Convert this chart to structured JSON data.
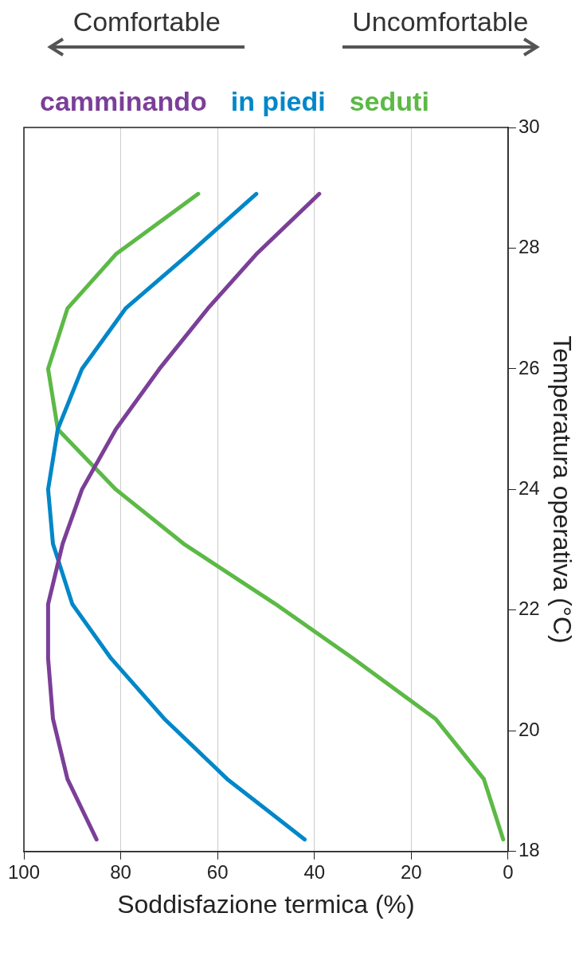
{
  "chart_data": {
    "type": "line",
    "xlabel": "Soddisfazione termica (%)",
    "ylabel": "Temperatura operativa (°C)",
    "annotations": [
      "Comfortable",
      "Uncomfortable"
    ],
    "series": [
      {
        "name": "camminando",
        "color": "#7b3f98",
        "x": [
          85,
          91,
          94,
          95,
          95,
          92,
          88,
          81,
          72,
          62,
          52,
          39
        ],
        "values": [
          18.2,
          19.2,
          20.2,
          21.2,
          22.1,
          23.1,
          24.0,
          25.0,
          26.0,
          27.0,
          27.9,
          28.9
        ]
      },
      {
        "name": "in piedi",
        "color": "#0087c8",
        "x": [
          42,
          58,
          71,
          82,
          90,
          94,
          95,
          93,
          88,
          79,
          66,
          52
        ],
        "values": [
          18.2,
          19.2,
          20.2,
          21.2,
          22.1,
          23.1,
          24.0,
          25.0,
          26.0,
          27.0,
          27.9,
          28.9
        ]
      },
      {
        "name": "seduti",
        "color": "#5cb946",
        "x": [
          1,
          5,
          15,
          32,
          48,
          67,
          81,
          93,
          95,
          91,
          81,
          64
        ],
        "values": [
          18.2,
          19.2,
          20.2,
          21.2,
          22.1,
          23.1,
          24.0,
          25.0,
          26.0,
          27.0,
          27.9,
          28.9
        ]
      }
    ],
    "xlim": [
      100,
      0
    ],
    "xticks": [
      100,
      80,
      60,
      40,
      20,
      0
    ],
    "ylim": [
      18,
      30
    ],
    "yticks": [
      18,
      20,
      22,
      24,
      26,
      28,
      30
    ],
    "grid": "x",
    "legend": "top",
    "marker": "none",
    "line_style": "solid"
  }
}
